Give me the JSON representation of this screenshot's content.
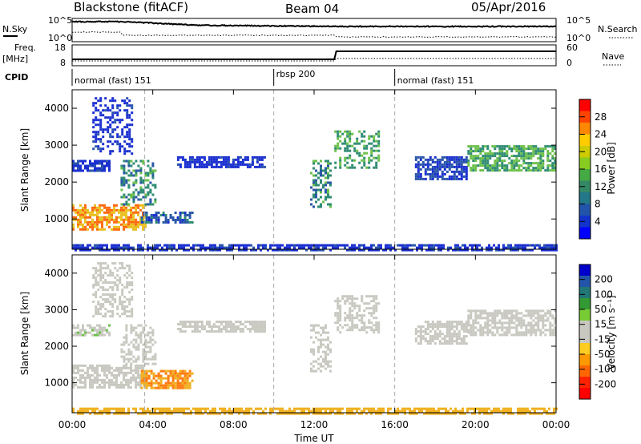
{
  "header": {
    "station": "Blackstone (fitACF)",
    "beam": "Beam 04",
    "date": "05/Apr/2016"
  },
  "side_labels": {
    "nsky": "N.Sky",
    "freq": "Freq.",
    "freq_unit": "[MHz]",
    "cpid": "CPID",
    "nsearch": "N.Search",
    "nave": "Nave"
  },
  "noise_panel": {
    "left_ticks": [
      "10^5",
      "10^0"
    ],
    "right_ticks": [
      "10^5",
      "10^0"
    ]
  },
  "freq_panel": {
    "left_ticks": [
      "18",
      "8"
    ],
    "right_ticks": [
      "60",
      "0"
    ]
  },
  "cpid_segments": [
    {
      "label": "normal (fast) 151",
      "start_hour": 0
    },
    {
      "label": "rbsp 200",
      "start_hour": 10
    },
    {
      "label": "normal (fast) 151",
      "start_hour": 16
    }
  ],
  "colorbars": {
    "power": {
      "title": "Power [dB]",
      "ticks": [
        "28",
        "24",
        "20",
        "16",
        "12",
        "8",
        "4"
      ],
      "colors": [
        "#ff0000",
        "#ff4400",
        "#ff8800",
        "#ffcc00",
        "#cccc00",
        "#88cc22",
        "#44aa44",
        "#338866",
        "#227788",
        "#2255aa",
        "#1133cc",
        "#0000ff"
      ]
    },
    "velocity": {
      "title": "Velocity [m s⁻¹]",
      "ticks": [
        "200",
        "100",
        "50",
        "15",
        "-15",
        "-50",
        "-100",
        "-200"
      ],
      "colors": [
        "#0000cc",
        "#2255aa",
        "#227777",
        "#339933",
        "#77cc33",
        "#c8c8c0",
        "#c8c8c0",
        "#ffcc22",
        "#ff9900",
        "#ff6600",
        "#ff2200",
        "#ff0000"
      ]
    }
  },
  "chart_data": {
    "type": "heatmap",
    "x_label": "Time UT",
    "x_ticks": [
      "00:00",
      "04:00",
      "08:00",
      "12:00",
      "16:00",
      "20:00",
      "00:00"
    ],
    "x_range_hours": [
      0,
      24
    ],
    "y_label": "Slant Range [km]",
    "y_ticks": [
      "1000",
      "2000",
      "3000",
      "4000"
    ],
    "y_range_km": [
      180,
      4500
    ],
    "panels": [
      {
        "name": "Power",
        "units": "dB",
        "regions": [
          {
            "t0": 0.0,
            "t1": 3.6,
            "r0": 700,
            "r1": 1400,
            "value": 24
          },
          {
            "t0": 2.4,
            "t1": 4.1,
            "r0": 1400,
            "r1": 2600,
            "value": 14
          },
          {
            "t0": 0.0,
            "t1": 1.8,
            "r0": 2300,
            "r1": 2600,
            "value": 6
          },
          {
            "t0": 1.0,
            "t1": 3.0,
            "r0": 2800,
            "r1": 4300,
            "value": 5
          },
          {
            "t0": 3.4,
            "t1": 6.0,
            "r0": 900,
            "r1": 1200,
            "value": 10
          },
          {
            "t0": 5.2,
            "t1": 9.5,
            "r0": 2400,
            "r1": 2700,
            "value": 5
          },
          {
            "t0": 11.8,
            "t1": 12.8,
            "r0": 1300,
            "r1": 2600,
            "value": 14
          },
          {
            "t0": 13.0,
            "t1": 15.2,
            "r0": 2400,
            "r1": 3400,
            "value": 16
          },
          {
            "t0": 17.0,
            "t1": 19.6,
            "r0": 2100,
            "r1": 2700,
            "value": 8
          },
          {
            "t0": 19.6,
            "t1": 24.0,
            "r0": 2300,
            "r1": 3000,
            "value": 16
          },
          {
            "t0": 0.0,
            "t1": 24.0,
            "r0": 180,
            "r1": 320,
            "value": 6
          }
        ]
      },
      {
        "name": "Velocity",
        "units": "m s-1",
        "regions": [
          {
            "t0": 0.0,
            "t1": 3.6,
            "r0": 900,
            "r1": 1500,
            "value": 0
          },
          {
            "t0": 2.4,
            "t1": 4.1,
            "r0": 1500,
            "r1": 2600,
            "value": 0
          },
          {
            "t0": 0.0,
            "t1": 1.8,
            "r0": 2300,
            "r1": 2600,
            "value": 5
          },
          {
            "t0": 1.0,
            "t1": 3.0,
            "r0": 2800,
            "r1": 4300,
            "value": 0
          },
          {
            "t0": 3.4,
            "t1": 6.0,
            "r0": 850,
            "r1": 1350,
            "value": -60
          },
          {
            "t0": 5.2,
            "t1": 9.5,
            "r0": 2400,
            "r1": 2700,
            "value": 0
          },
          {
            "t0": 11.8,
            "t1": 12.8,
            "r0": 1300,
            "r1": 2600,
            "value": 0
          },
          {
            "t0": 13.0,
            "t1": 15.2,
            "r0": 2400,
            "r1": 3400,
            "value": 0
          },
          {
            "t0": 17.0,
            "t1": 19.6,
            "r0": 2100,
            "r1": 2700,
            "value": 0
          },
          {
            "t0": 19.6,
            "t1": 24.0,
            "r0": 2300,
            "r1": 3000,
            "value": 0
          },
          {
            "t0": 0.0,
            "t1": 24.0,
            "r0": 180,
            "r1": 320,
            "value": -40
          }
        ]
      }
    ]
  }
}
